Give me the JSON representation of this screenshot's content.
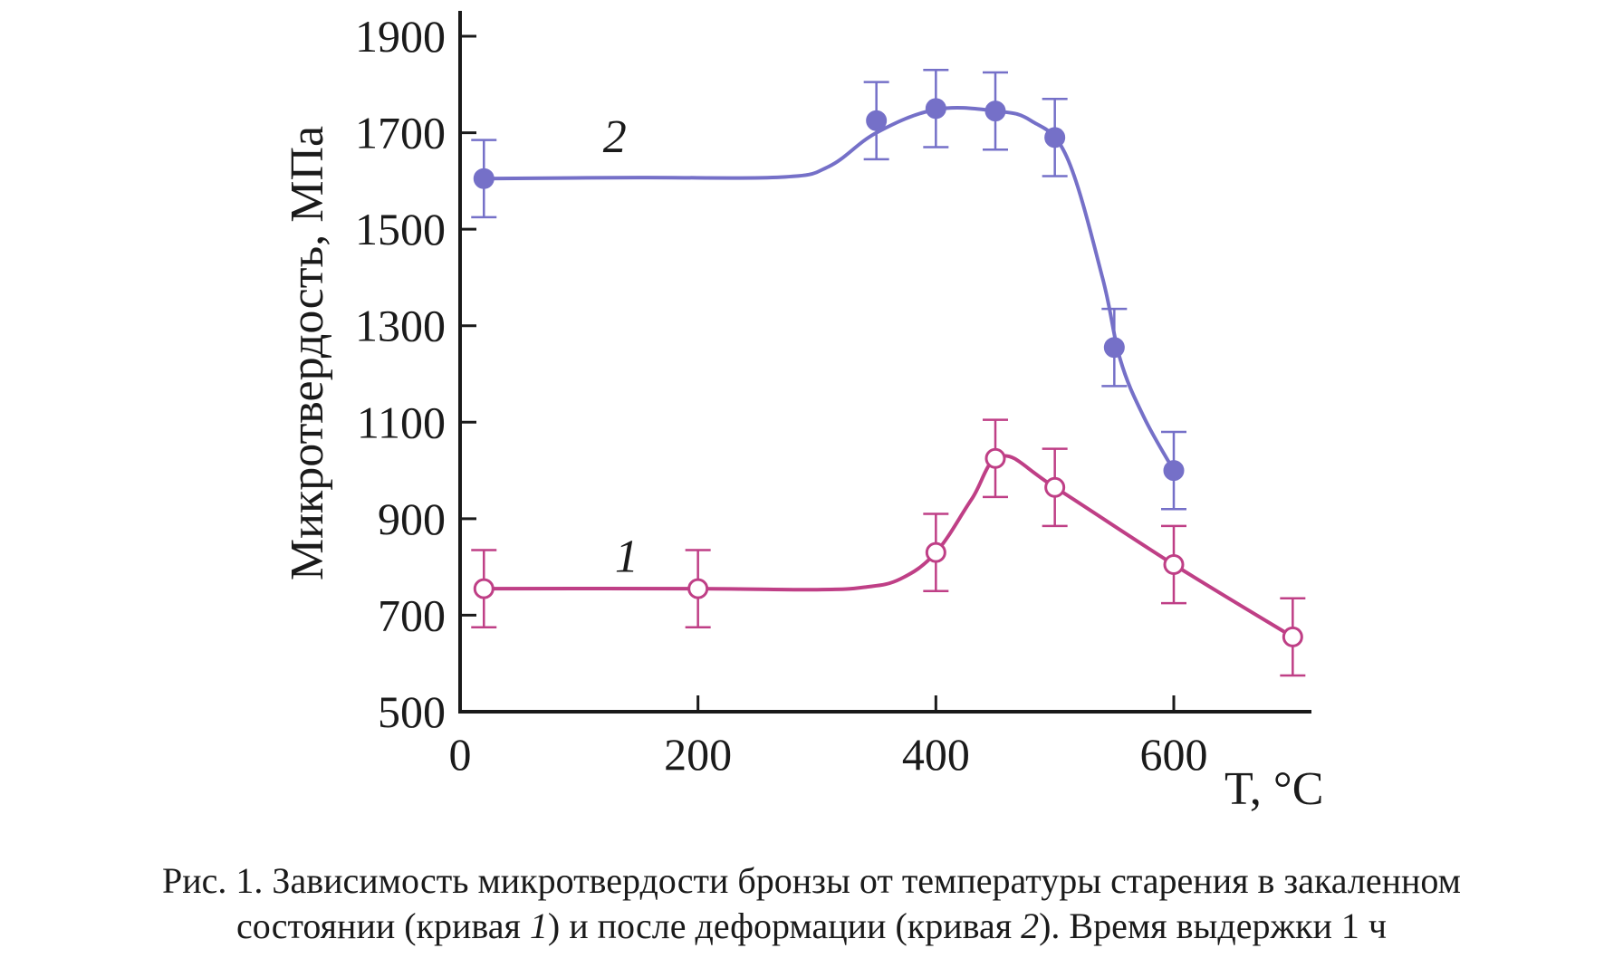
{
  "chart_data": {
    "type": "line",
    "xlabel": "T, °C",
    "ylabel": "Микротвердость, МПа",
    "xlim": [
      0,
      700
    ],
    "ylim": [
      500,
      1900
    ],
    "x_ticks": [
      0,
      200,
      400,
      600
    ],
    "y_ticks": [
      500,
      700,
      900,
      1100,
      1300,
      1500,
      1700,
      1900
    ],
    "grid": false,
    "series": [
      {
        "name": "1",
        "color": "#bf3f86",
        "marker": "open-circle",
        "x": [
          20,
          200,
          400,
          450,
          500,
          600,
          700
        ],
        "y": [
          755,
          755,
          830,
          1025,
          965,
          805,
          655
        ],
        "err": [
          80,
          80,
          80,
          80,
          80,
          80,
          80
        ],
        "curve": [
          [
            20,
            755
          ],
          [
            200,
            755
          ],
          [
            300,
            753
          ],
          [
            340,
            758
          ],
          [
            370,
            775
          ],
          [
            400,
            830
          ],
          [
            430,
            940
          ],
          [
            455,
            1030
          ],
          [
            500,
            965
          ],
          [
            600,
            805
          ],
          [
            700,
            655
          ]
        ]
      },
      {
        "name": "2",
        "color": "#7570c8",
        "marker": "filled-circle",
        "x": [
          20,
          350,
          400,
          450,
          500,
          550,
          600
        ],
        "y": [
          1605,
          1725,
          1750,
          1745,
          1690,
          1255,
          1000
        ],
        "err": [
          80,
          80,
          80,
          80,
          80,
          80,
          80
        ],
        "curve": [
          [
            20,
            1605
          ],
          [
            150,
            1607
          ],
          [
            270,
            1608
          ],
          [
            310,
            1630
          ],
          [
            350,
            1700
          ],
          [
            400,
            1748
          ],
          [
            450,
            1745
          ],
          [
            480,
            1725
          ],
          [
            510,
            1650
          ],
          [
            540,
            1400
          ],
          [
            555,
            1230
          ],
          [
            575,
            1110
          ],
          [
            600,
            1000
          ]
        ]
      }
    ]
  },
  "caption": {
    "line1": "Рис. 1. Зависимость микротвердости бронзы от температуры старения в закаленном",
    "line2_a": "состоянии (кривая ",
    "line2_b": "1",
    "line2_c": ") и после деформации (кривая ",
    "line2_d": "2",
    "line2_e": "). Время выдержки 1 ч"
  }
}
